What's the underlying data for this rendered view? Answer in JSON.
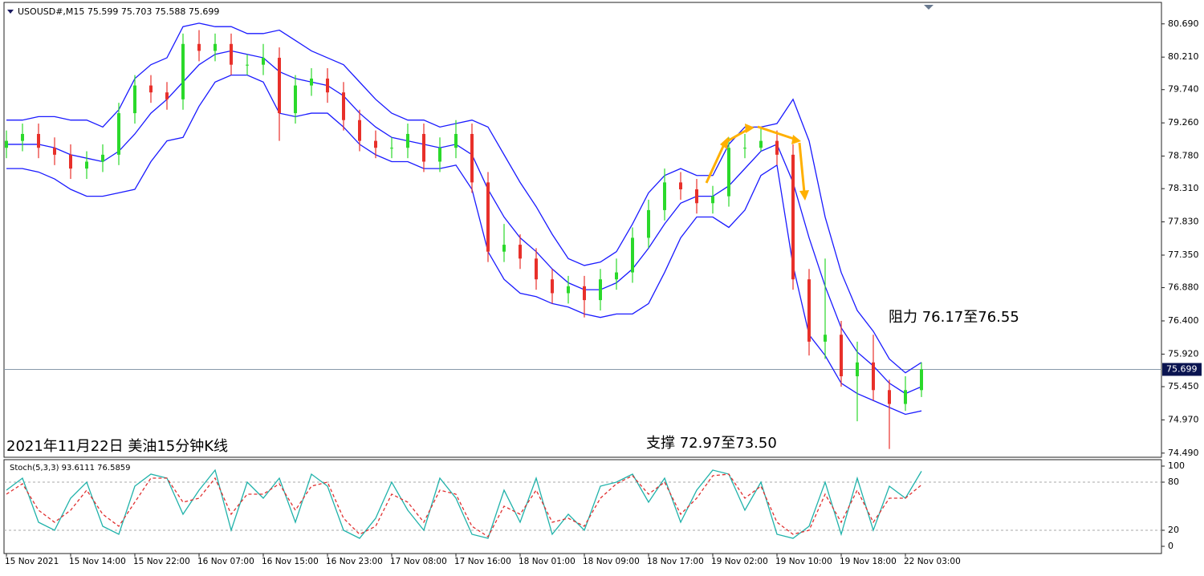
{
  "chart_data": [
    {
      "type": "candlestick",
      "title": "USOUSD#,M15  75.599 75.703 75.588 75.699",
      "categories": [
        "15 Nov 2021",
        null,
        null,
        null,
        "15 Nov 14:00",
        null,
        null,
        null,
        "15 Nov 22:00",
        null,
        null,
        null,
        "16 Nov 07:00",
        null,
        null,
        null,
        "16 Nov 15:00",
        null,
        null,
        null,
        "16 Nov 23:00",
        null,
        null,
        null,
        "17 Nov 08:00",
        null,
        null,
        null,
        "17 Nov 16:00",
        null,
        null,
        null,
        "18 Nov 01:00",
        null,
        null,
        null,
        "18 Nov 09:00",
        null,
        null,
        null,
        "18 Nov 17:00",
        null,
        null,
        null,
        "19 Nov 02:00",
        null,
        null,
        null,
        "19 Nov 10:00",
        null,
        null,
        null,
        "19 Nov 18:00",
        null,
        null,
        null,
        "22 Nov 03:00",
        null
      ],
      "open": [
        78.9,
        79.0,
        79.1,
        78.9,
        78.8,
        78.6,
        78.7,
        78.8,
        79.4,
        79.8,
        79.7,
        79.6,
        80.4,
        80.3,
        80.4,
        80.1,
        80.1,
        80.2,
        79.4,
        79.8,
        79.9,
        79.7,
        79.3,
        79.0,
        78.9,
        78.9,
        79.1,
        78.7,
        78.9,
        79.1,
        78.4,
        77.4,
        77.5,
        77.3,
        77.0,
        76.8,
        76.9,
        76.7,
        77.0,
        77.1,
        77.6,
        78.0,
        78.4,
        78.3,
        78.1,
        78.2,
        78.9,
        78.9,
        79.0,
        78.8,
        77.0,
        76.1,
        76.2,
        75.6,
        75.8,
        75.4,
        75.2,
        75.4
      ],
      "high": [
        79.15,
        79.25,
        79.25,
        79.05,
        78.95,
        78.85,
        78.95,
        79.55,
        79.95,
        79.95,
        79.85,
        80.55,
        80.6,
        80.55,
        80.55,
        80.25,
        80.4,
        80.35,
        79.95,
        80.05,
        80.05,
        79.85,
        79.45,
        79.15,
        79.05,
        79.25,
        79.25,
        79.05,
        79.3,
        79.25,
        78.55,
        77.8,
        77.65,
        77.45,
        77.15,
        77.05,
        77.05,
        77.15,
        77.3,
        77.75,
        78.15,
        78.6,
        78.55,
        78.45,
        78.35,
        79.05,
        79.1,
        79.2,
        79.15,
        78.95,
        77.15,
        77.3,
        76.4,
        76.1,
        76.2,
        75.55,
        75.6,
        75.8
      ],
      "low": [
        78.75,
        78.85,
        78.75,
        78.65,
        78.45,
        78.45,
        78.55,
        78.65,
        79.25,
        79.55,
        79.45,
        79.45,
        80.15,
        80.15,
        79.95,
        79.95,
        79.95,
        79.0,
        79.25,
        79.65,
        79.55,
        79.15,
        78.85,
        78.75,
        78.75,
        78.75,
        78.55,
        78.55,
        78.75,
        78.25,
        77.25,
        77.25,
        77.15,
        76.85,
        76.65,
        76.65,
        76.45,
        76.55,
        76.85,
        76.95,
        77.45,
        77.85,
        78.15,
        77.95,
        77.95,
        78.05,
        78.75,
        78.85,
        78.65,
        76.85,
        75.9,
        75.85,
        75.45,
        74.95,
        75.25,
        74.55,
        75.1,
        75.3
      ],
      "close": [
        79.0,
        79.1,
        78.9,
        78.8,
        78.6,
        78.7,
        78.8,
        79.4,
        79.8,
        79.7,
        79.6,
        80.4,
        80.3,
        80.4,
        80.1,
        80.1,
        80.2,
        79.4,
        79.8,
        79.9,
        79.7,
        79.3,
        79.0,
        78.9,
        78.9,
        79.1,
        78.7,
        78.9,
        79.1,
        78.4,
        77.4,
        77.5,
        77.3,
        77.0,
        76.8,
        76.9,
        76.7,
        77.0,
        77.1,
        77.6,
        78.0,
        78.4,
        78.3,
        78.1,
        78.2,
        78.9,
        78.9,
        79.0,
        78.8,
        77.0,
        76.1,
        76.2,
        75.6,
        75.8,
        75.4,
        75.2,
        75.4,
        75.699
      ],
      "up_color": "#2bd92b",
      "down_color": "#e8302a",
      "overlays": [
        {
          "color": "#1a1aff",
          "values": [
            79.3,
            79.3,
            79.35,
            79.35,
            79.3,
            79.3,
            79.2,
            79.45,
            79.9,
            80.1,
            80.2,
            80.65,
            80.7,
            80.65,
            80.65,
            80.55,
            80.55,
            80.6,
            80.45,
            80.3,
            80.2,
            80.1,
            79.85,
            79.6,
            79.4,
            79.3,
            79.3,
            79.2,
            79.25,
            79.3,
            79.2,
            78.8,
            78.4,
            78.05,
            77.65,
            77.3,
            77.2,
            77.25,
            77.4,
            77.8,
            78.25,
            78.5,
            78.6,
            78.5,
            78.5,
            78.95,
            79.2,
            79.2,
            79.25,
            79.6,
            79.0,
            77.9,
            77.1,
            76.55,
            76.25,
            75.85,
            75.65,
            75.8
          ]
        },
        {
          "color": "#1a1aff",
          "values": [
            78.95,
            78.95,
            78.95,
            78.9,
            78.8,
            78.75,
            78.7,
            78.85,
            79.1,
            79.4,
            79.6,
            79.85,
            80.1,
            80.25,
            80.3,
            80.25,
            80.2,
            80.0,
            79.9,
            79.85,
            79.8,
            79.65,
            79.4,
            79.2,
            79.05,
            79.0,
            78.95,
            78.9,
            78.95,
            78.8,
            78.3,
            77.9,
            77.6,
            77.4,
            77.15,
            76.95,
            76.85,
            76.85,
            76.95,
            77.15,
            77.45,
            77.8,
            78.1,
            78.2,
            78.2,
            78.35,
            78.6,
            78.85,
            78.95,
            78.4,
            77.6,
            76.9,
            76.3,
            75.95,
            75.75,
            75.5,
            75.35,
            75.45
          ]
        },
        {
          "color": "#1a1aff",
          "values": [
            78.6,
            78.6,
            78.55,
            78.45,
            78.3,
            78.2,
            78.2,
            78.25,
            78.3,
            78.7,
            79.0,
            79.05,
            79.5,
            79.85,
            79.95,
            79.95,
            79.85,
            79.4,
            79.35,
            79.4,
            79.4,
            79.2,
            78.95,
            78.8,
            78.7,
            78.7,
            78.6,
            78.6,
            78.65,
            78.3,
            77.4,
            77.0,
            76.8,
            76.75,
            76.65,
            76.6,
            76.5,
            76.45,
            76.5,
            76.5,
            76.65,
            77.1,
            77.6,
            77.9,
            77.9,
            77.75,
            78.0,
            78.5,
            78.65,
            77.2,
            76.2,
            75.9,
            75.5,
            75.35,
            75.25,
            75.15,
            75.05,
            75.1
          ]
        }
      ],
      "ylim": [
        74.43,
        81.0
      ],
      "yticks": [
        {
          "value": 80.69,
          "label": "80.690"
        },
        {
          "value": 80.21,
          "label": "80.210"
        },
        {
          "value": 79.74,
          "label": "79.740"
        },
        {
          "value": 79.26,
          "label": "79.260"
        },
        {
          "value": 78.78,
          "label": "78.780"
        },
        {
          "value": 78.31,
          "label": "78.310"
        },
        {
          "value": 77.83,
          "label": "77.830"
        },
        {
          "value": 77.35,
          "label": "77.350"
        },
        {
          "value": 76.88,
          "label": "76.880"
        },
        {
          "value": 76.4,
          "label": "76.400"
        },
        {
          "value": 75.92,
          "label": "75.920"
        },
        {
          "value": 75.45,
          "label": "75.450"
        },
        {
          "value": 74.97,
          "label": "74.970"
        },
        {
          "value": 74.49,
          "label": "74.490"
        }
      ],
      "last_price": 75.699,
      "annotations": [
        "阻力 76.17至76.55",
        "支撑 72.97至73.50",
        "2021年11月22日 美油15分钟K线"
      ]
    },
    {
      "type": "line",
      "title": "Stoch(5,3,3) 93.6111 76.5859",
      "series": [
        {
          "color": "#20b2aa",
          "values": [
            70,
            85,
            30,
            20,
            60,
            80,
            25,
            15,
            75,
            90,
            85,
            40,
            70,
            95,
            20,
            80,
            60,
            85,
            30,
            90,
            75,
            20,
            10,
            35,
            80,
            45,
            20,
            85,
            60,
            15,
            10,
            70,
            30,
            85,
            15,
            40,
            20,
            75,
            80,
            90,
            55,
            85,
            30,
            70,
            95,
            90,
            45,
            80,
            15,
            10,
            25,
            80,
            15,
            85,
            20,
            75,
            60,
            93.6111
          ]
        },
        {
          "color": "#e03030",
          "dashed": true,
          "values": [
            65,
            78,
            45,
            30,
            45,
            70,
            40,
            25,
            55,
            85,
            85,
            55,
            60,
            85,
            40,
            65,
            65,
            78,
            45,
            75,
            80,
            35,
            15,
            25,
            65,
            55,
            30,
            70,
            65,
            25,
            12,
            50,
            40,
            70,
            30,
            35,
            25,
            60,
            78,
            88,
            65,
            80,
            40,
            60,
            88,
            90,
            60,
            75,
            30,
            15,
            20,
            65,
            30,
            70,
            30,
            60,
            60,
            76.5859
          ]
        }
      ],
      "ylim": [
        -9,
        108
      ],
      "yticks": [
        100,
        80,
        20,
        0
      ],
      "levels": [
        80,
        20
      ]
    }
  ]
}
